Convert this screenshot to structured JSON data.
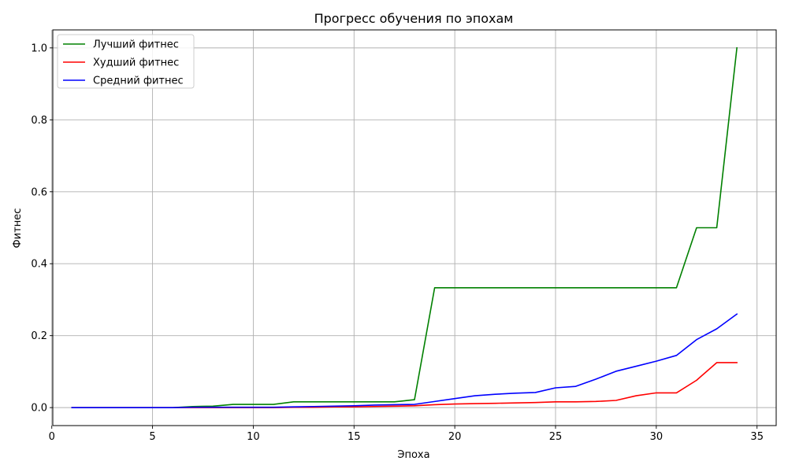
{
  "chart_data": {
    "type": "line",
    "title": "Прогресс обучения по эпохам",
    "xlabel": "Эпоха",
    "ylabel": "Фитнес",
    "xlim": [
      0.05,
      35.95
    ],
    "ylim": [
      -0.05,
      1.05
    ],
    "xticks": [
      0,
      5,
      10,
      15,
      20,
      25,
      30,
      35
    ],
    "yticks": [
      0.0,
      0.2,
      0.4,
      0.6,
      0.8,
      1.0
    ],
    "xtick_labels": [
      "0",
      "5",
      "10",
      "15",
      "20",
      "25",
      "30",
      "35"
    ],
    "ytick_labels": [
      "0.0",
      "0.2",
      "0.4",
      "0.6",
      "0.8",
      "1.0"
    ],
    "grid": true,
    "legend_position": "top-left",
    "x": [
      1,
      2,
      3,
      4,
      5,
      6,
      7,
      8,
      9,
      10,
      11,
      12,
      13,
      14,
      15,
      16,
      17,
      18,
      19,
      20,
      21,
      22,
      23,
      24,
      25,
      26,
      27,
      28,
      29,
      30,
      31,
      32,
      33,
      34
    ],
    "series": [
      {
        "name": "Лучший фитнес",
        "color": "#008000",
        "values": [
          0.0,
          0.0,
          0.0,
          0.0,
          0.0,
          0.0,
          0.003,
          0.004,
          0.009,
          0.009,
          0.009,
          0.016,
          0.016,
          0.016,
          0.016,
          0.016,
          0.016,
          0.022,
          0.333,
          0.333,
          0.333,
          0.333,
          0.333,
          0.333,
          0.333,
          0.333,
          0.333,
          0.333,
          0.333,
          0.333,
          0.333,
          0.5,
          0.5,
          1.0
        ]
      },
      {
        "name": "Худший фитнес",
        "color": "#ff0000",
        "values": [
          0.0,
          0.0,
          0.0,
          0.0,
          0.0,
          0.0,
          0.0,
          0.0,
          0.0,
          0.0,
          0.0,
          0.001,
          0.001,
          0.002,
          0.002,
          0.003,
          0.004,
          0.005,
          0.008,
          0.01,
          0.011,
          0.012,
          0.013,
          0.014,
          0.016,
          0.016,
          0.017,
          0.02,
          0.033,
          0.041,
          0.041,
          0.076,
          0.125,
          0.125
        ]
      },
      {
        "name": "Средний фитнес",
        "color": "#0000ff",
        "values": [
          0.0,
          0.0,
          0.0,
          0.0,
          0.0,
          0.0,
          0.001,
          0.001,
          0.001,
          0.001,
          0.001,
          0.002,
          0.003,
          0.004,
          0.005,
          0.007,
          0.008,
          0.009,
          0.017,
          0.025,
          0.033,
          0.037,
          0.04,
          0.042,
          0.055,
          0.059,
          0.079,
          0.101,
          0.115,
          0.129,
          0.145,
          0.189,
          0.219,
          0.26
        ]
      }
    ]
  }
}
